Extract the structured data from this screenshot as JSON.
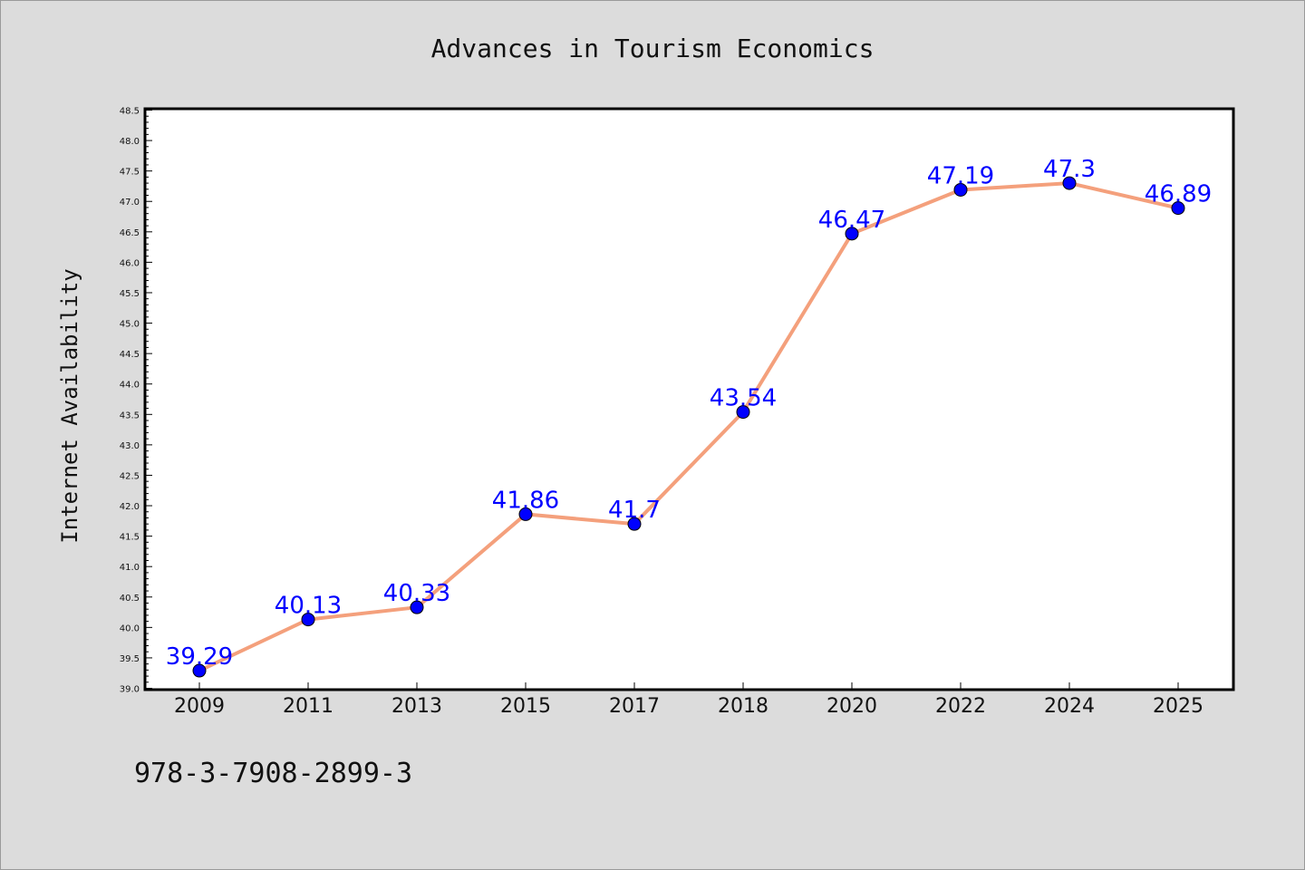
{
  "chart_data": {
    "type": "line",
    "title": "Advances in Tourism Economics",
    "ylabel": "Internet Availability",
    "xlabel": "",
    "categories": [
      "2009",
      "2011",
      "2013",
      "2015",
      "2017",
      "2018",
      "2020",
      "2022",
      "2024",
      "2025"
    ],
    "values": [
      39.29,
      40.13,
      40.33,
      41.86,
      41.7,
      43.54,
      46.47,
      47.19,
      47.3,
      46.89
    ],
    "data_labels": [
      "39.29",
      "40.13",
      "40.33",
      "41.86",
      "41.7",
      "43.54",
      "46.47",
      "47.19",
      "47.3",
      "46.89"
    ],
    "ylim": [
      39.0,
      48.5
    ],
    "y_ticks": [
      "39.0",
      "39.5",
      "40.0",
      "40.5",
      "41.0",
      "41.5",
      "42.0",
      "42.5",
      "43.0",
      "43.5",
      "44.0",
      "44.5",
      "45.0",
      "45.5",
      "46.0",
      "46.5",
      "47.0",
      "47.5",
      "48.0",
      "48.5"
    ],
    "grid": false,
    "line_color": "#f4a07c",
    "marker_color": "#0000ff",
    "label_color": "#0000ff",
    "annotation": "978-3-7908-2899-3"
  }
}
